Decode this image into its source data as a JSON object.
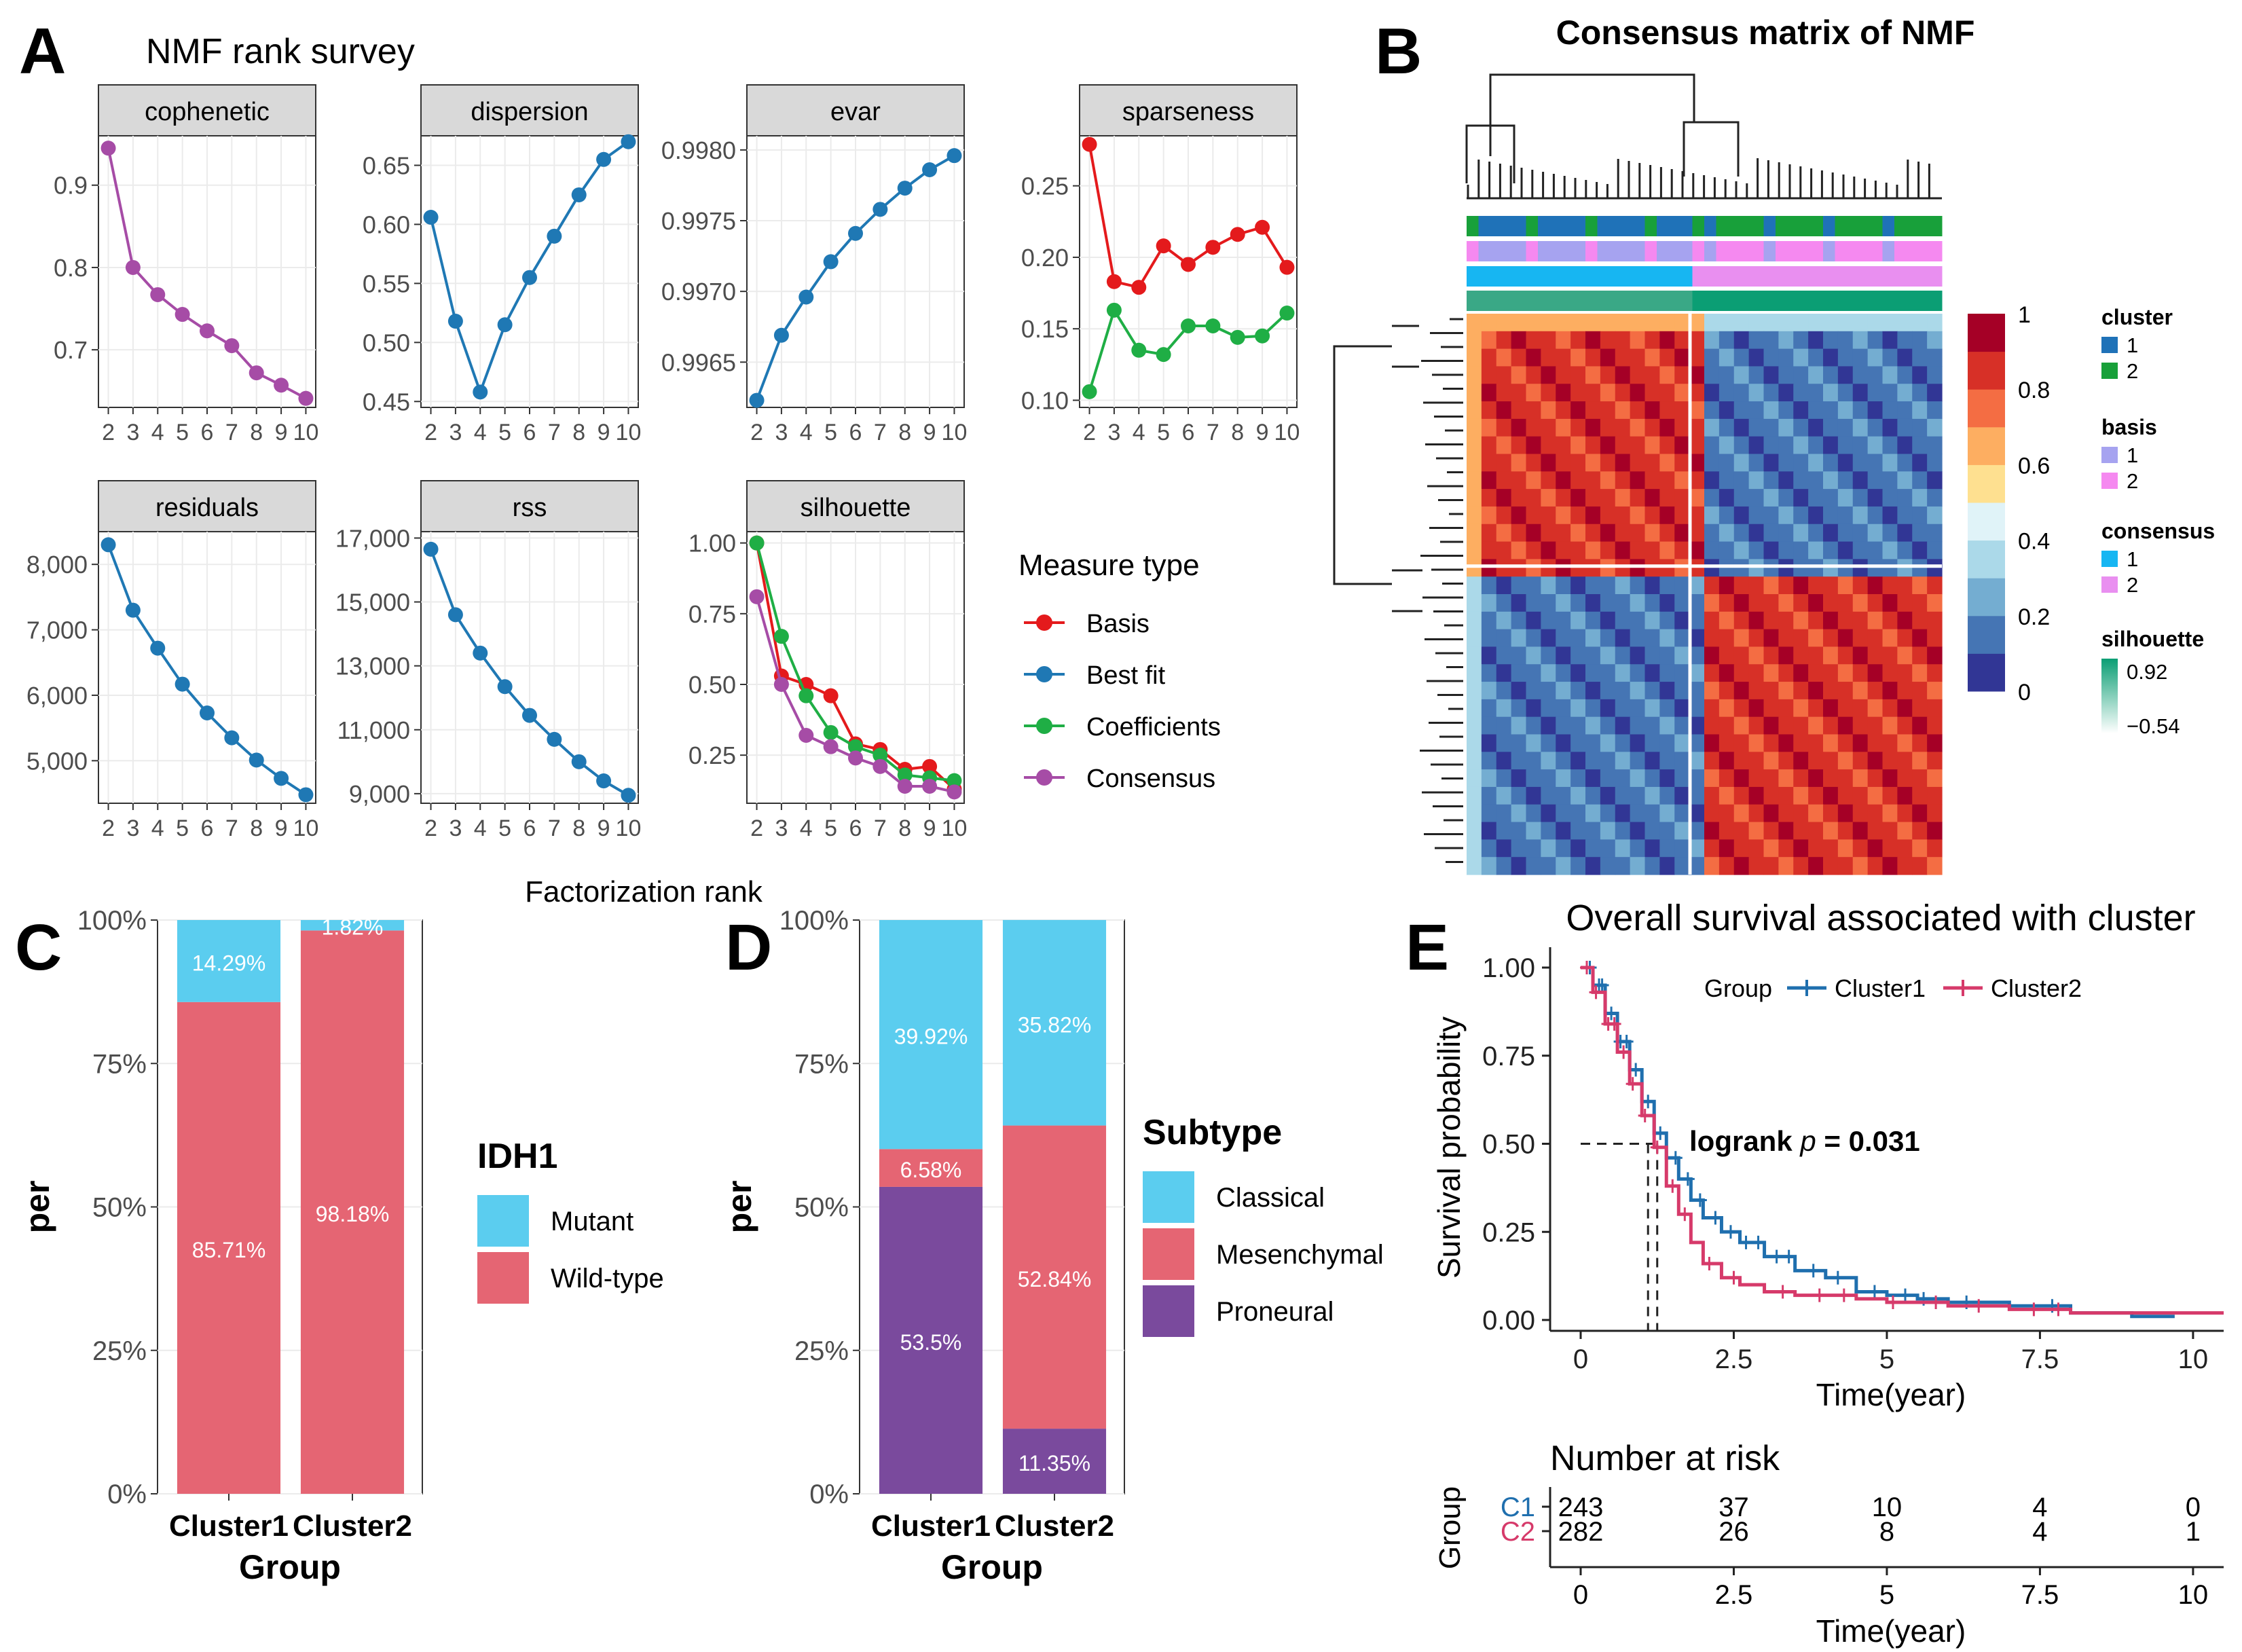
{
  "panel_letters": {
    "a": "A",
    "b": "B",
    "c": "C",
    "d": "D",
    "e": "E"
  },
  "chart_data": [
    {
      "id": "A",
      "type": "line",
      "title": "NMF rank survey",
      "xlabel": "Factorization rank",
      "x": [
        2,
        3,
        4,
        5,
        6,
        7,
        8,
        9,
        10
      ],
      "legend": {
        "title": "Measure type",
        "position": "right",
        "entries": [
          {
            "name": "Basis",
            "color": "#e41a1c"
          },
          {
            "name": "Best fit",
            "color": "#1f78b4"
          },
          {
            "name": "Coefficients",
            "color": "#1fae45"
          },
          {
            "name": "Consensus",
            "color": "#a64ca6"
          }
        ]
      },
      "facets": [
        {
          "name": "cophenetic",
          "ylim": [
            0.63,
            0.96
          ],
          "ticks": [
            0.7,
            0.8,
            0.9
          ],
          "tick_labels": [
            "0.7",
            "0.8",
            "0.9"
          ],
          "series": [
            {
              "name": "Consensus",
              "color": "#a64ca6",
              "values": [
                0.945,
                0.8,
                0.767,
                0.743,
                0.723,
                0.705,
                0.672,
                0.657,
                0.641
              ]
            }
          ]
        },
        {
          "name": "dispersion",
          "ylim": [
            0.445,
            0.675
          ],
          "ticks": [
            0.45,
            0.5,
            0.55,
            0.6,
            0.65
          ],
          "tick_labels": [
            "0.45",
            "0.50",
            "0.55",
            "0.60",
            "0.65"
          ],
          "series": [
            {
              "name": "Best fit",
              "color": "#1f78b4",
              "values": [
                0.606,
                0.518,
                0.458,
                0.515,
                0.555,
                0.59,
                0.625,
                0.655,
                0.67
              ]
            }
          ]
        },
        {
          "name": "evar",
          "ylim": [
            0.99618,
            0.9981
          ],
          "ticks": [
            0.9965,
            0.997,
            0.9975,
            0.998
          ],
          "tick_labels": [
            "0.9965",
            "0.9970",
            "0.9975",
            "0.9980"
          ],
          "series": [
            {
              "name": "Best fit",
              "color": "#1f78b4",
              "values": [
                0.99623,
                0.99669,
                0.99696,
                0.99721,
                0.99741,
                0.99758,
                0.99773,
                0.99786,
                0.99796
              ]
            }
          ]
        },
        {
          "name": "sparseness",
          "ylim": [
            0.095,
            0.285
          ],
          "ticks": [
            0.1,
            0.15,
            0.2,
            0.25
          ],
          "tick_labels": [
            "0.10",
            "0.15",
            "0.20",
            "0.25"
          ],
          "series": [
            {
              "name": "Basis",
              "color": "#e41a1c",
              "values": [
                0.279,
                0.183,
                0.179,
                0.208,
                0.195,
                0.207,
                0.216,
                0.221,
                0.193
              ]
            },
            {
              "name": "Coefficients",
              "color": "#1fae45",
              "values": [
                0.106,
                0.163,
                0.135,
                0.132,
                0.152,
                0.152,
                0.144,
                0.145,
                0.161
              ]
            }
          ]
        },
        {
          "name": "residuals",
          "ylim": [
            4350,
            8500
          ],
          "ticks": [
            5000,
            6000,
            7000,
            8000
          ],
          "tick_labels": [
            "5,000",
            "6,000",
            "7,000",
            "8,000"
          ],
          "series": [
            {
              "name": "Best fit",
              "color": "#1f78b4",
              "values": [
                8300,
                7300,
                6720,
                6170,
                5730,
                5350,
                5010,
                4730,
                4480
              ]
            }
          ]
        },
        {
          "name": "rss",
          "ylim": [
            8700,
            17200
          ],
          "ticks": [
            9000,
            11000,
            13000,
            15000,
            17000
          ],
          "tick_labels": [
            "9,000",
            "11,000",
            "13,000",
            "15,000",
            "17,000"
          ],
          "series": [
            {
              "name": "Best fit",
              "color": "#1f78b4",
              "values": [
                16650,
                14600,
                13400,
                12350,
                11450,
                10700,
                10000,
                9400,
                8950
              ]
            }
          ]
        },
        {
          "name": "silhouette",
          "ylim": [
            0.08,
            1.04
          ],
          "ticks": [
            0.25,
            0.5,
            0.75,
            1.0
          ],
          "tick_labels": [
            "0.25",
            "0.50",
            "0.75",
            "1.00"
          ],
          "series": [
            {
              "name": "Basis",
              "color": "#e41a1c",
              "values": [
                1.0,
                0.53,
                0.5,
                0.46,
                0.29,
                0.27,
                0.2,
                0.21,
                0.13
              ]
            },
            {
              "name": "Coefficients",
              "color": "#1fae45",
              "values": [
                1.0,
                0.67,
                0.46,
                0.33,
                0.28,
                0.25,
                0.18,
                0.17,
                0.16
              ]
            },
            {
              "name": "Consensus",
              "color": "#a64ca6",
              "values": [
                0.81,
                0.5,
                0.32,
                0.28,
                0.24,
                0.21,
                0.14,
                0.14,
                0.12
              ]
            }
          ]
        }
      ]
    },
    {
      "id": "B",
      "type": "heatmap",
      "title": "Consensus matrix of NMF",
      "colorbar": {
        "ticks": [
          "0",
          "0.2",
          "0.4",
          "0.6",
          "0.8",
          "1"
        ],
        "colors": [
          "#313695",
          "#4575b4",
          "#74add1",
          "#abd9e9",
          "#e0f3f8",
          "#fee090",
          "#fdae61",
          "#f46d43",
          "#d73027",
          "#a50026"
        ]
      },
      "legend": [
        {
          "title": "cluster",
          "items": [
            {
              "label": "1",
              "color": "#1f72b8"
            },
            {
              "label": "2",
              "color": "#18a03a"
            }
          ]
        },
        {
          "title": "basis",
          "items": [
            {
              "label": "1",
              "color": "#a6a3f0"
            },
            {
              "label": "2",
              "color": "#f589f0"
            }
          ]
        },
        {
          "title": "consensus",
          "items": [
            {
              "label": "1",
              "color": "#17b6f2"
            },
            {
              "label": "2",
              "color": "#e98ff0"
            }
          ]
        },
        {
          "title": "silhouette",
          "gradient": [
            "#0b9e74",
            "#ffffff"
          ],
          "labels": [
            "0.92",
            "−0.54"
          ]
        }
      ]
    },
    {
      "id": "C",
      "type": "bar",
      "stacked": true,
      "categories": [
        "Cluster1",
        "Cluster2"
      ],
      "xlabel": "Group",
      "ylabel": "per",
      "yticks": [
        "0%",
        "25%",
        "50%",
        "75%",
        "100%"
      ],
      "legend": {
        "title": "IDH1",
        "position": "right"
      },
      "series": [
        {
          "name": "Wild-type",
          "color": "#e56573",
          "values": [
            85.71,
            98.18
          ],
          "labels": [
            "85.71%",
            "98.18%"
          ]
        },
        {
          "name": "Mutant",
          "color": "#5bcdef",
          "values": [
            14.29,
            1.82
          ],
          "labels": [
            "14.29%",
            "1.82%"
          ]
        }
      ]
    },
    {
      "id": "D",
      "type": "bar",
      "stacked": true,
      "categories": [
        "Cluster1",
        "Cluster2"
      ],
      "xlabel": "Group",
      "ylabel": "per",
      "yticks": [
        "0%",
        "25%",
        "50%",
        "75%",
        "100%"
      ],
      "legend": {
        "title": "Subtype",
        "position": "right",
        "order": [
          "Classical",
          "Mesenchymal",
          "Proneural"
        ]
      },
      "series": [
        {
          "name": "Proneural",
          "color": "#7a4a9d",
          "values": [
            53.5,
            11.35
          ],
          "labels": [
            "53.5%",
            "11.35%"
          ]
        },
        {
          "name": "Mesenchymal",
          "color": "#e56573",
          "values": [
            6.58,
            52.84
          ],
          "labels": [
            "6.58%",
            "52.84%"
          ]
        },
        {
          "name": "Classical",
          "color": "#5bcdef",
          "values": [
            39.92,
            35.82
          ],
          "labels": [
            "39.92%",
            "35.82%"
          ]
        }
      ]
    },
    {
      "id": "E",
      "type": "line",
      "subtype": "kaplan-meier",
      "title": "Overall survival associated with cluster",
      "xlabel": "Time(year)",
      "ylabel": "Survival probability",
      "xlim": [
        0,
        10.5
      ],
      "xticks": [
        0,
        2.5,
        5,
        7.5,
        10
      ],
      "xtick_labels": [
        "0",
        "2.5",
        "5",
        "7.5",
        "10"
      ],
      "yticks": [
        0,
        0.25,
        0.5,
        0.75,
        1.0
      ],
      "ytick_labels": [
        "0.00",
        "0.25",
        "0.50",
        "0.75",
        "1.00"
      ],
      "legend_title": "Group",
      "annotation": {
        "prefix": "logrank ",
        "p_symbol": "p",
        "value": " = 0.031"
      },
      "series": [
        {
          "name": "Cluster1",
          "color": "#1f6fae",
          "x": [
            0,
            0.2,
            0.4,
            0.6,
            0.8,
            1.0,
            1.2,
            1.4,
            1.6,
            1.8,
            2.0,
            2.3,
            2.6,
            3.0,
            3.5,
            4.0,
            4.5,
            5.0,
            5.5,
            6.0,
            7.0,
            8.0,
            9.0,
            9.7
          ],
          "y": [
            1.0,
            0.95,
            0.87,
            0.79,
            0.71,
            0.62,
            0.53,
            0.46,
            0.4,
            0.34,
            0.29,
            0.25,
            0.22,
            0.18,
            0.14,
            0.12,
            0.08,
            0.07,
            0.06,
            0.05,
            0.04,
            0.02,
            0.01,
            0.01
          ],
          "censor_x": [
            0.15,
            0.3,
            0.35,
            0.5,
            0.65,
            0.75,
            0.9,
            1.1,
            1.3,
            1.55,
            1.75,
            1.95,
            2.2,
            2.45,
            2.7,
            2.9,
            3.2,
            3.4,
            3.8,
            4.2,
            4.8,
            5.3,
            5.6,
            6.3,
            7.7
          ]
        },
        {
          "name": "Cluster2",
          "color": "#d63a6a",
          "x": [
            0,
            0.2,
            0.4,
            0.6,
            0.8,
            1.0,
            1.2,
            1.4,
            1.6,
            1.8,
            2.0,
            2.3,
            2.6,
            3.0,
            3.5,
            4.0,
            4.5,
            5.0,
            5.5,
            6.0,
            7.0,
            8.0,
            9.0,
            10.0,
            10.5
          ],
          "y": [
            1.0,
            0.93,
            0.84,
            0.76,
            0.67,
            0.58,
            0.49,
            0.38,
            0.3,
            0.22,
            0.16,
            0.12,
            0.1,
            0.08,
            0.07,
            0.07,
            0.06,
            0.05,
            0.05,
            0.04,
            0.03,
            0.02,
            0.02,
            0.02,
            0.02
          ],
          "censor_x": [
            0.1,
            0.25,
            0.45,
            0.55,
            0.7,
            0.85,
            1.05,
            1.25,
            1.5,
            1.7,
            2.1,
            2.5,
            3.3,
            3.9,
            4.3,
            5.1,
            5.8,
            6.5,
            7.4,
            7.8
          ]
        }
      ],
      "risk_table": {
        "title": "Number at risk",
        "ylabel": "Group",
        "xlabel": "Time(year)",
        "times": [
          0,
          2.5,
          5,
          7.5,
          10
        ],
        "time_labels": [
          "0",
          "2.5",
          "5",
          "7.5",
          "10"
        ],
        "rows": [
          {
            "label": "C1",
            "color": "#1f6fae",
            "counts": [
              "243",
              "37",
              "10",
              "4",
              "0"
            ]
          },
          {
            "label": "C2",
            "color": "#d63a6a",
            "counts": [
              "282",
              "26",
              "8",
              "4",
              "1"
            ]
          }
        ]
      }
    }
  ]
}
